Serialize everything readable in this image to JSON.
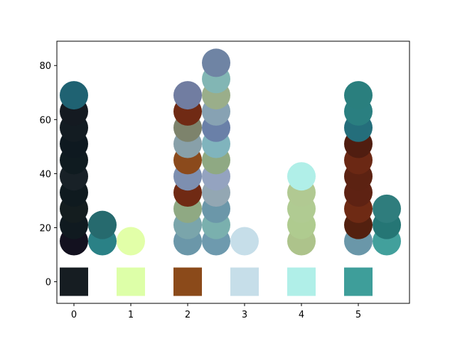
{
  "chart_data": {
    "type": "scatter",
    "xlim": [
      -0.3,
      5.9
    ],
    "ylim": [
      -8,
      89
    ],
    "xticks": [
      0,
      1,
      2,
      3,
      4,
      5
    ],
    "yticks": [
      0,
      20,
      40,
      60,
      80
    ],
    "grid": false,
    "swatches": [
      {
        "x": 0,
        "y": 0,
        "color": "#161d22"
      },
      {
        "x": 1,
        "y": 0,
        "color": "#ddffa8"
      },
      {
        "x": 2,
        "y": 0,
        "color": "#8b4a1a"
      },
      {
        "x": 3,
        "y": 0,
        "color": "#c6dee9"
      },
      {
        "x": 4,
        "y": 0,
        "color": "#b0efe8"
      },
      {
        "x": 5,
        "y": 0,
        "color": "#3e9e9a"
      }
    ],
    "points": [
      {
        "x": 0,
        "y": 15,
        "color": "#13111f"
      },
      {
        "x": 0,
        "y": 21,
        "color": "#101a20"
      },
      {
        "x": 0,
        "y": 27,
        "color": "#141d1f"
      },
      {
        "x": 0,
        "y": 33,
        "color": "#0f1a1f"
      },
      {
        "x": 0,
        "y": 39,
        "color": "#182127"
      },
      {
        "x": 0,
        "y": 45,
        "color": "#0f1b20"
      },
      {
        "x": 0,
        "y": 51,
        "color": "#0e1920"
      },
      {
        "x": 0,
        "y": 57,
        "color": "#131c22"
      },
      {
        "x": 0,
        "y": 63,
        "color": "#141a21"
      },
      {
        "x": 0,
        "y": 69,
        "color": "#1f6272"
      },
      {
        "x": 0.5,
        "y": 15,
        "color": "#2a8186"
      },
      {
        "x": 0.5,
        "y": 21,
        "color": "#266a6e"
      },
      {
        "x": 1,
        "y": 15,
        "color": "#e2ffa8"
      },
      {
        "x": 2,
        "y": 15,
        "color": "#6b97a9"
      },
      {
        "x": 2,
        "y": 21,
        "color": "#7aa5ab"
      },
      {
        "x": 2,
        "y": 27,
        "color": "#8fa983"
      },
      {
        "x": 2,
        "y": 33,
        "color": "#702a14"
      },
      {
        "x": 2,
        "y": 39,
        "color": "#7d8fb0"
      },
      {
        "x": 2,
        "y": 45,
        "color": "#8b4a1c"
      },
      {
        "x": 2,
        "y": 51,
        "color": "#88a0a9"
      },
      {
        "x": 2,
        "y": 57,
        "color": "#7d836c"
      },
      {
        "x": 2,
        "y": 63,
        "color": "#702a14"
      },
      {
        "x": 2,
        "y": 69,
        "color": "#717da1"
      },
      {
        "x": 2.5,
        "y": 15,
        "color": "#6e9aae"
      },
      {
        "x": 2.5,
        "y": 21,
        "color": "#7ab0ae"
      },
      {
        "x": 2.5,
        "y": 27,
        "color": "#6b97a9"
      },
      {
        "x": 2.5,
        "y": 33,
        "color": "#93a7b3"
      },
      {
        "x": 2.5,
        "y": 39,
        "color": "#94a3c0"
      },
      {
        "x": 2.5,
        "y": 45,
        "color": "#8fa983"
      },
      {
        "x": 2.5,
        "y": 51,
        "color": "#80b4bd"
      },
      {
        "x": 2.5,
        "y": 57,
        "color": "#6a80a8"
      },
      {
        "x": 2.5,
        "y": 63,
        "color": "#87a2b3"
      },
      {
        "x": 2.5,
        "y": 69,
        "color": "#9aae8a"
      },
      {
        "x": 2.5,
        "y": 75,
        "color": "#82b6b4"
      },
      {
        "x": 2.5,
        "y": 81,
        "color": "#6f84a4"
      },
      {
        "x": 3,
        "y": 15,
        "color": "#c6dee9"
      },
      {
        "x": 4,
        "y": 15,
        "color": "#adc38b"
      },
      {
        "x": 4,
        "y": 21,
        "color": "#afcb8f"
      },
      {
        "x": 4,
        "y": 27,
        "color": "#b0cb92"
      },
      {
        "x": 4,
        "y": 33,
        "color": "#b1c992"
      },
      {
        "x": 4,
        "y": 39,
        "color": "#b0efe8"
      },
      {
        "x": 5,
        "y": 15,
        "color": "#6a97a9"
      },
      {
        "x": 5,
        "y": 21,
        "color": "#53200f"
      },
      {
        "x": 5,
        "y": 27,
        "color": "#6e2a14"
      },
      {
        "x": 5,
        "y": 33,
        "color": "#5e2213"
      },
      {
        "x": 5,
        "y": 39,
        "color": "#5c2212"
      },
      {
        "x": 5,
        "y": 45,
        "color": "#6b2814"
      },
      {
        "x": 5,
        "y": 51,
        "color": "#501d10"
      },
      {
        "x": 5,
        "y": 57,
        "color": "#246e7b"
      },
      {
        "x": 5,
        "y": 63,
        "color": "#2a7f80"
      },
      {
        "x": 5,
        "y": 69,
        "color": "#2a7f7e"
      },
      {
        "x": 5.5,
        "y": 15,
        "color": "#42a09c"
      },
      {
        "x": 5.5,
        "y": 21,
        "color": "#257675"
      },
      {
        "x": 5.5,
        "y": 27,
        "color": "#2f7d7d"
      }
    ]
  }
}
